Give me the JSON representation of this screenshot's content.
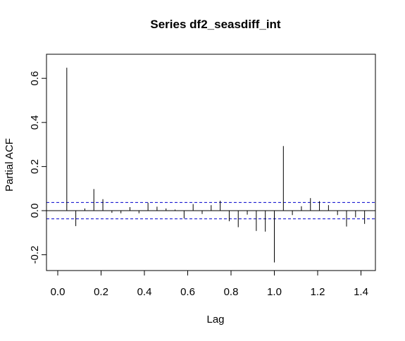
{
  "chart_data": {
    "type": "bar",
    "title": "Series  df2_seasdiff_int",
    "xlabel": "Lag",
    "ylabel": "Partial ACF",
    "xlim": [
      0.0,
      1.45
    ],
    "ylim": [
      -0.24,
      0.65
    ],
    "x_ticks": [
      "0.0",
      "0.2",
      "0.4",
      "0.6",
      "0.8",
      "1.0",
      "1.2",
      "1.4"
    ],
    "y_ticks": [
      "-0.2",
      "0.0",
      "0.2",
      "0.4",
      "0.6"
    ],
    "confidence_bound": 0.037,
    "confidence_line_color": "#0000cc",
    "grid": false,
    "x": [
      0.0417,
      0.0833,
      0.125,
      0.1667,
      0.2083,
      0.25,
      0.2917,
      0.3333,
      0.375,
      0.4167,
      0.4583,
      0.5,
      0.5417,
      0.5833,
      0.625,
      0.6667,
      0.7083,
      0.75,
      0.7917,
      0.8333,
      0.875,
      0.9167,
      0.9583,
      1.0,
      1.0417,
      1.0833,
      1.125,
      1.1667,
      1.2083,
      1.25,
      1.2917,
      1.3333,
      1.375,
      1.4167
    ],
    "values": [
      0.648,
      -0.07,
      0.01,
      0.098,
      0.052,
      -0.01,
      -0.012,
      0.016,
      -0.012,
      0.036,
      0.018,
      0.01,
      0.005,
      -0.035,
      0.03,
      -0.015,
      0.025,
      0.045,
      -0.048,
      -0.075,
      -0.018,
      -0.092,
      -0.095,
      -0.235,
      0.293,
      -0.02,
      0.02,
      0.057,
      0.043,
      0.025,
      -0.02,
      -0.072,
      -0.03,
      -0.06
    ]
  }
}
